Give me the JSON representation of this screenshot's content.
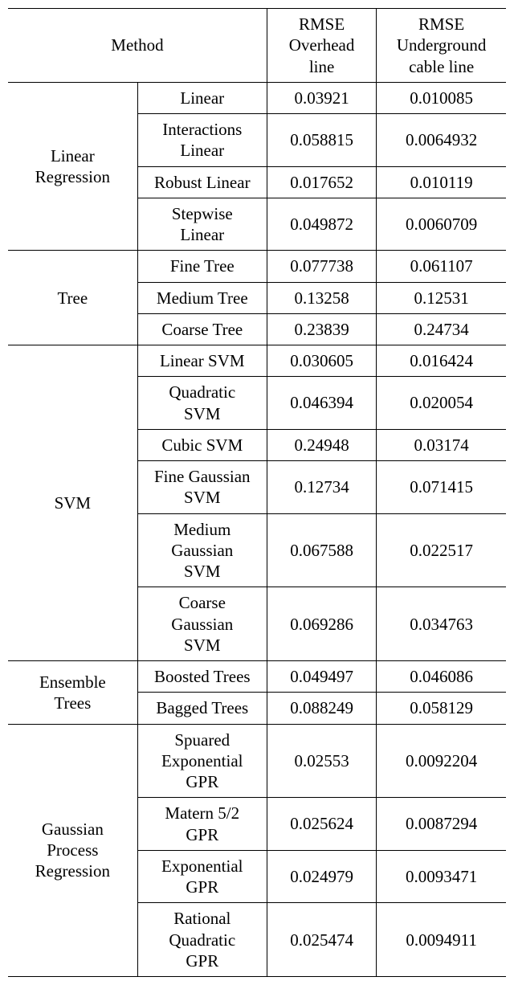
{
  "headers": {
    "method": "Method",
    "col_overhead_l1": "RMSE",
    "col_overhead_l2": "Overhead",
    "col_overhead_l3": "line",
    "col_under_l1": "RMSE",
    "col_under_l2": "Underground",
    "col_under_l3": "cable line"
  },
  "groups": {
    "linear_regression": "Linear\nRegression",
    "tree": "Tree",
    "svm": "SVM",
    "ensemble": "Ensemble\nTrees",
    "gpr": "Gaussian\nProcess\nRegression"
  },
  "rows": {
    "linear": {
      "name": "Linear",
      "oh": "0.03921",
      "ug": "0.010085"
    },
    "inter_linear_l1": "Interactions",
    "inter_linear_l2": "Linear",
    "inter_linear": {
      "oh": "0.058815",
      "ug": "0.0064932"
    },
    "robust_linear": {
      "name": "Robust Linear",
      "oh": "0.017652",
      "ug": "0.010119"
    },
    "stepwise_l1": "Stepwise",
    "stepwise_l2": "Linear",
    "stepwise": {
      "oh": "0.049872",
      "ug": "0.0060709"
    },
    "fine_tree": {
      "name": "Fine Tree",
      "oh": "0.077738",
      "ug": "0.061107"
    },
    "medium_tree": {
      "name": "Medium Tree",
      "oh": "0.13258",
      "ug": "0.12531"
    },
    "coarse_tree": {
      "name": "Coarse Tree",
      "oh": "0.23839",
      "ug": "0.24734"
    },
    "linear_svm": {
      "name": "Linear SVM",
      "oh": "0.030605",
      "ug": "0.016424"
    },
    "quad_svm_l1": "Quadratic",
    "quad_svm_l2": "SVM",
    "quad_svm": {
      "oh": "0.046394",
      "ug": "0.020054"
    },
    "cubic_svm": {
      "name": "Cubic SVM",
      "oh": "0.24948",
      "ug": "0.03174"
    },
    "fine_g_l1": "Fine Gaussian",
    "fine_g_l2": "SVM",
    "fine_g": {
      "oh": "0.12734",
      "ug": "0.071415"
    },
    "med_g_l1": "Medium",
    "med_g_l2": "Gaussian",
    "med_g_l3": "SVM",
    "med_g": {
      "oh": "0.067588",
      "ug": "0.022517"
    },
    "coarse_g_l1": "Coarse",
    "coarse_g_l2": "Gaussian",
    "coarse_g_l3": "SVM",
    "coarse_g": {
      "oh": "0.069286",
      "ug": "0.034763"
    },
    "boosted": {
      "name": "Boosted Trees",
      "oh": "0.049497",
      "ug": "0.046086"
    },
    "bagged": {
      "name": "Bagged Trees",
      "oh": "0.088249",
      "ug": "0.058129"
    },
    "sq_exp_l1": "Spuared",
    "sq_exp_l2": "Exponential",
    "sq_exp_l3": "GPR",
    "sq_exp": {
      "oh": "0.02553",
      "ug": "0.0092204"
    },
    "matern_l1": "Matern 5/2",
    "matern_l2": "GPR",
    "matern": {
      "oh": "0.025624",
      "ug": "0.0087294"
    },
    "exp_l1": "Exponential",
    "exp_l2": "GPR",
    "exp": {
      "oh": "0.024979",
      "ug": "0.0093471"
    },
    "ratq_l1": "Rational",
    "ratq_l2": "Quadratic",
    "ratq_l3": "GPR",
    "ratq": {
      "oh": "0.025474",
      "ug": "0.0094911"
    }
  },
  "style": {
    "font_family": "Times New Roman",
    "font_size_pt": 21,
    "border_color": "#000000",
    "background": "#ffffff"
  }
}
